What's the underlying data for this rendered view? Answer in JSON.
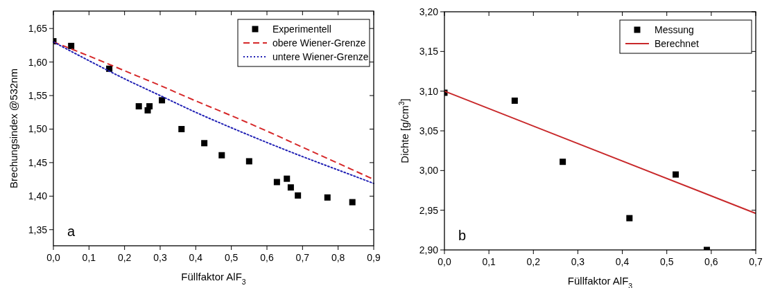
{
  "chart_data": [
    {
      "type": "scatter",
      "xlabel": "Füllfaktor AlF$_{3}$",
      "ylabel": "Brechungsindex @532nm",
      "annotations": [
        "a"
      ],
      "legend": "top right",
      "xlim": [
        0,
        0.9
      ],
      "ylim": [
        1.326,
        1.676
      ],
      "xticks": [
        {
          "value": 0,
          "label": "0,0"
        },
        {
          "value": 0.1,
          "label": "0,1"
        },
        {
          "value": 0.2,
          "label": "0,2"
        },
        {
          "value": 0.3,
          "label": "0,3"
        },
        {
          "value": 0.4,
          "label": "0,4"
        },
        {
          "value": 0.5,
          "label": "0,5"
        },
        {
          "value": 0.6,
          "label": "0,6"
        },
        {
          "value": 0.7,
          "label": "0,7"
        },
        {
          "value": 0.8,
          "label": "0,8"
        },
        {
          "value": 0.9,
          "label": "0,9"
        }
      ],
      "yticks": [
        {
          "value": 1.35,
          "label": "1,35"
        },
        {
          "value": 1.4,
          "label": "1,40"
        },
        {
          "value": 1.45,
          "label": "1,45"
        },
        {
          "value": 1.5,
          "label": "1,50"
        },
        {
          "value": 1.55,
          "label": "1,55"
        },
        {
          "value": 1.6,
          "label": "1,60"
        },
        {
          "value": 1.65,
          "label": "1,65"
        }
      ],
      "series": [
        {
          "name": "Experimentell",
          "marker": "square",
          "color": "#000000",
          "x": [
            0,
            0.05,
            0.157,
            0.24,
            0.265,
            0.27,
            0.305,
            0.36,
            0.424,
            0.473,
            0.55,
            0.628,
            0.656,
            0.667,
            0.687,
            0.77,
            0.84
          ],
          "values": [
            1.631,
            1.624,
            1.59,
            1.534,
            1.528,
            1.534,
            1.543,
            1.5,
            1.479,
            1.461,
            1.452,
            1.421,
            1.426,
            1.413,
            1.401,
            1.398,
            1.391
          ]
        },
        {
          "name": "obere Wiener-Grenze",
          "type": "line",
          "line_style": "dashed",
          "color": "#d62728",
          "x": [
            0,
            0.1,
            0.2,
            0.3,
            0.4,
            0.5,
            0.6,
            0.7,
            0.8,
            0.9
          ],
          "values": [
            1.63,
            1.609,
            1.587,
            1.565,
            1.542,
            1.52,
            1.497,
            1.473,
            1.449,
            1.425
          ]
        },
        {
          "name": "untere Wiener-Grenze",
          "type": "line",
          "line_style": "dotted",
          "color": "#1f1fb4",
          "x": [
            0,
            0.1,
            0.2,
            0.3,
            0.4,
            0.5,
            0.6,
            0.7,
            0.8,
            0.9
          ],
          "values": [
            1.63,
            1.602,
            1.575,
            1.55,
            1.525,
            1.502,
            1.48,
            1.459,
            1.439,
            1.419
          ]
        }
      ]
    },
    {
      "type": "scatter",
      "xlabel": "Füllfaktor AlF$_{3}$",
      "ylabel": "Dichte [g/cm$^{3}$]",
      "annotations": [
        "b"
      ],
      "legend": "top right",
      "xlim": [
        0,
        0.7
      ],
      "ylim": [
        2.9,
        3.2
      ],
      "xticks": [
        {
          "value": 0,
          "label": "0,0"
        },
        {
          "value": 0.1,
          "label": "0,1"
        },
        {
          "value": 0.2,
          "label": "0,2"
        },
        {
          "value": 0.3,
          "label": "0,3"
        },
        {
          "value": 0.4,
          "label": "0,4"
        },
        {
          "value": 0.5,
          "label": "0,5"
        },
        {
          "value": 0.6,
          "label": "0,6"
        },
        {
          "value": 0.7,
          "label": "0,7"
        }
      ],
      "yticks": [
        {
          "value": 2.9,
          "label": "2,90"
        },
        {
          "value": 2.95,
          "label": "2,95"
        },
        {
          "value": 3,
          "label": "3,00"
        },
        {
          "value": 3.05,
          "label": "3,05"
        },
        {
          "value": 3.1,
          "label": "3,10"
        },
        {
          "value": 3.15,
          "label": "3,15"
        },
        {
          "value": 3.2,
          "label": "3,20"
        }
      ],
      "series": [
        {
          "name": "Messung",
          "marker": "square",
          "color": "#000000",
          "x": [
            0,
            0.158,
            0.266,
            0.416,
            0.52,
            0.59
          ],
          "values": [
            3.098,
            3.088,
            3.011,
            2.94,
            2.995,
            2.9
          ]
        },
        {
          "name": "Berechnet",
          "type": "line",
          "line_style": "solid",
          "color": "#c8282a",
          "x": [
            0,
            0.7
          ],
          "values": [
            3.1,
            2.946
          ]
        }
      ]
    }
  ]
}
